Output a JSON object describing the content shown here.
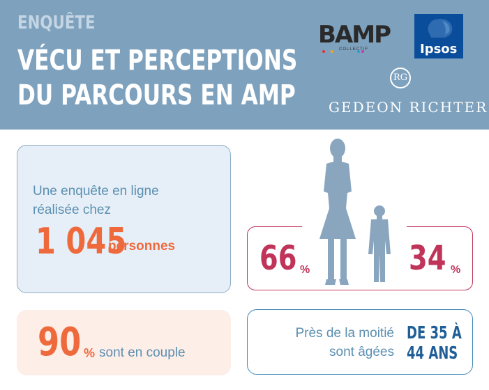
{
  "header": {
    "kicker": "ENQUÊTE",
    "title_line1": "VÉCU ET PERCEPTIONS",
    "title_line2": "DU PARCOURS EN AMP"
  },
  "logos": {
    "bamp": "BAMP",
    "bamp_sub": "COLLECTIF",
    "ipsos": "Ipsos",
    "rg_mark": "RG",
    "gedeon": "GEDEON RICHTER"
  },
  "survey": {
    "line1": "Une enquête en ligne",
    "line2": "réalisée chez",
    "number": "1 045",
    "unit": "personnes"
  },
  "couple": {
    "value": "90",
    "symbol": "%",
    "text": "sont en couple"
  },
  "gender": {
    "women_value": "66",
    "women_symbol": "%",
    "men_value": "34",
    "men_symbol": "%",
    "women_fraction": 0.66,
    "men_fraction": 0.34
  },
  "age": {
    "line1": "Près de la moitié",
    "line2": "sont âgées",
    "value_line1": "DE 35 À",
    "value_line2": "44 ANS"
  },
  "colors": {
    "header_bg": "#7ea1bd",
    "orange": "#ee6a3d",
    "crimson": "#c0345a",
    "blue_text": "#5b8fb1",
    "dark_blue": "#1f5e97",
    "silhouette": "#8aa6bf"
  }
}
